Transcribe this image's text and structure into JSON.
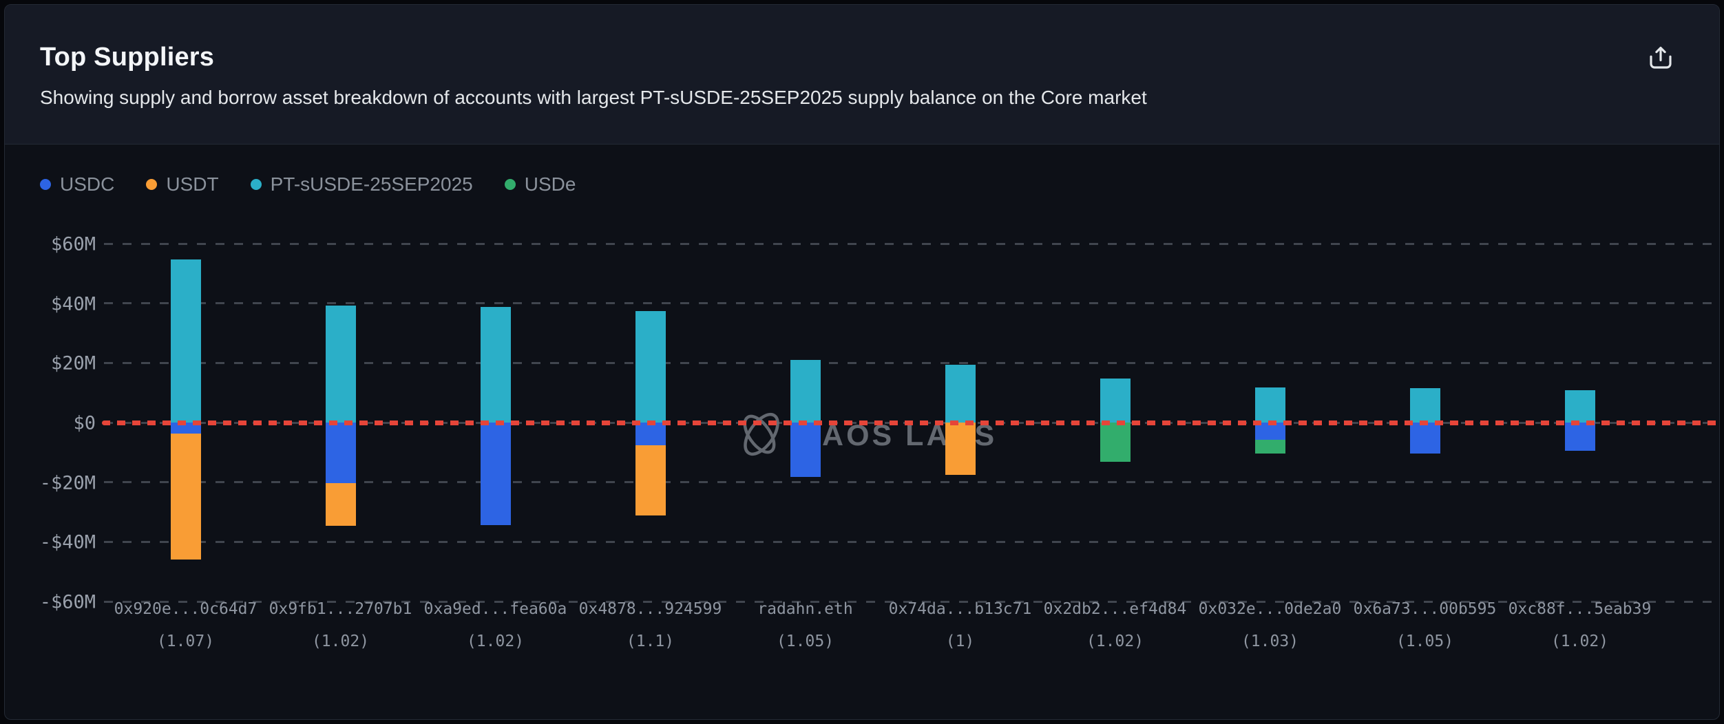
{
  "header": {
    "title": "Top Suppliers",
    "subtitle": "Showing supply and borrow asset breakdown of accounts with largest PT-sUSDE-25SEP2025 supply balance on the Core market",
    "share_icon": "share-export-icon"
  },
  "watermark": {
    "text": "HAOS LABS",
    "logo": "chaos-labs-orbit-logo"
  },
  "colors": {
    "header_bg": "#161a25",
    "chart_bg": "#0d1017",
    "card_border": "#242a35",
    "gridline": "#40454e",
    "zero_line": "#e64539",
    "axis_text": "#9aa1ac",
    "watermark": "#6b7078"
  },
  "chart_data": {
    "type": "bar",
    "subtype": "stacked-diverging",
    "unit": "USD millions",
    "ylim": [
      -60,
      60
    ],
    "yticks": [
      "$60M",
      "$40M",
      "$20M",
      "$0",
      "-$20M",
      "-$40M",
      "-$60M"
    ],
    "grid": "dashed horizontal",
    "legend_position": "top-left",
    "zero_reference_line": true,
    "assets": [
      {
        "name": "USDC",
        "color": "#2d64e4"
      },
      {
        "name": "USDT",
        "color": "#f99d35"
      },
      {
        "name": "PT-sUSDE-25SEP2025",
        "color": "#2bafc8"
      },
      {
        "name": "USDe",
        "color": "#32ad6c"
      }
    ],
    "accounts": [
      {
        "label": "0x920e...0c64d7",
        "health_factor": "(1.07)",
        "segments": [
          {
            "asset": "PT-sUSDE-25SEP2025",
            "value": 54.7
          },
          {
            "asset": "USDC",
            "value": -3.7
          },
          {
            "asset": "USDT",
            "value": -42.2
          }
        ]
      },
      {
        "label": "0x9fb1...2707b1",
        "health_factor": "(1.02)",
        "segments": [
          {
            "asset": "PT-sUSDE-25SEP2025",
            "value": 39.3
          },
          {
            "asset": "USDC",
            "value": -20.3
          },
          {
            "asset": "USDT",
            "value": -14.3
          }
        ]
      },
      {
        "label": "0xa9ed...fea60a",
        "health_factor": "(1.02)",
        "segments": [
          {
            "asset": "PT-sUSDE-25SEP2025",
            "value": 38.8
          },
          {
            "asset": "USDC",
            "value": -34.4
          }
        ]
      },
      {
        "label": "0x4878...924599",
        "health_factor": "(1.1)",
        "segments": [
          {
            "asset": "PT-sUSDE-25SEP2025",
            "value": 37.4
          },
          {
            "asset": "USDC",
            "value": -7.6
          },
          {
            "asset": "USDT",
            "value": -23.6
          }
        ]
      },
      {
        "label": "radahn.eth",
        "health_factor": "(1.05)",
        "segments": [
          {
            "asset": "PT-sUSDE-25SEP2025",
            "value": 21.0
          },
          {
            "asset": "USDC",
            "value": -18.2
          }
        ]
      },
      {
        "label": "0x74da...b13c71",
        "health_factor": "(1)",
        "segments": [
          {
            "asset": "PT-sUSDE-25SEP2025",
            "value": 19.4
          },
          {
            "asset": "USDT",
            "value": -17.6
          }
        ]
      },
      {
        "label": "0x2db2...ef4d84",
        "health_factor": "(1.02)",
        "segments": [
          {
            "asset": "PT-sUSDE-25SEP2025",
            "value": 14.8
          },
          {
            "asset": "USDe",
            "value": -13.2
          }
        ]
      },
      {
        "label": "0x032e...0de2a0",
        "health_factor": "(1.03)",
        "segments": [
          {
            "asset": "PT-sUSDE-25SEP2025",
            "value": 11.8
          },
          {
            "asset": "USDC",
            "value": -5.8
          },
          {
            "asset": "USDe",
            "value": -4.6
          }
        ]
      },
      {
        "label": "0x6a73...00b595",
        "health_factor": "(1.05)",
        "segments": [
          {
            "asset": "PT-sUSDE-25SEP2025",
            "value": 11.5
          },
          {
            "asset": "USDC",
            "value": -10.4
          }
        ]
      },
      {
        "label": "0xc88f...5eab39",
        "health_factor": "(1.02)",
        "segments": [
          {
            "asset": "PT-sUSDE-25SEP2025",
            "value": 10.8
          },
          {
            "asset": "USDC",
            "value": -9.4
          }
        ]
      }
    ]
  }
}
